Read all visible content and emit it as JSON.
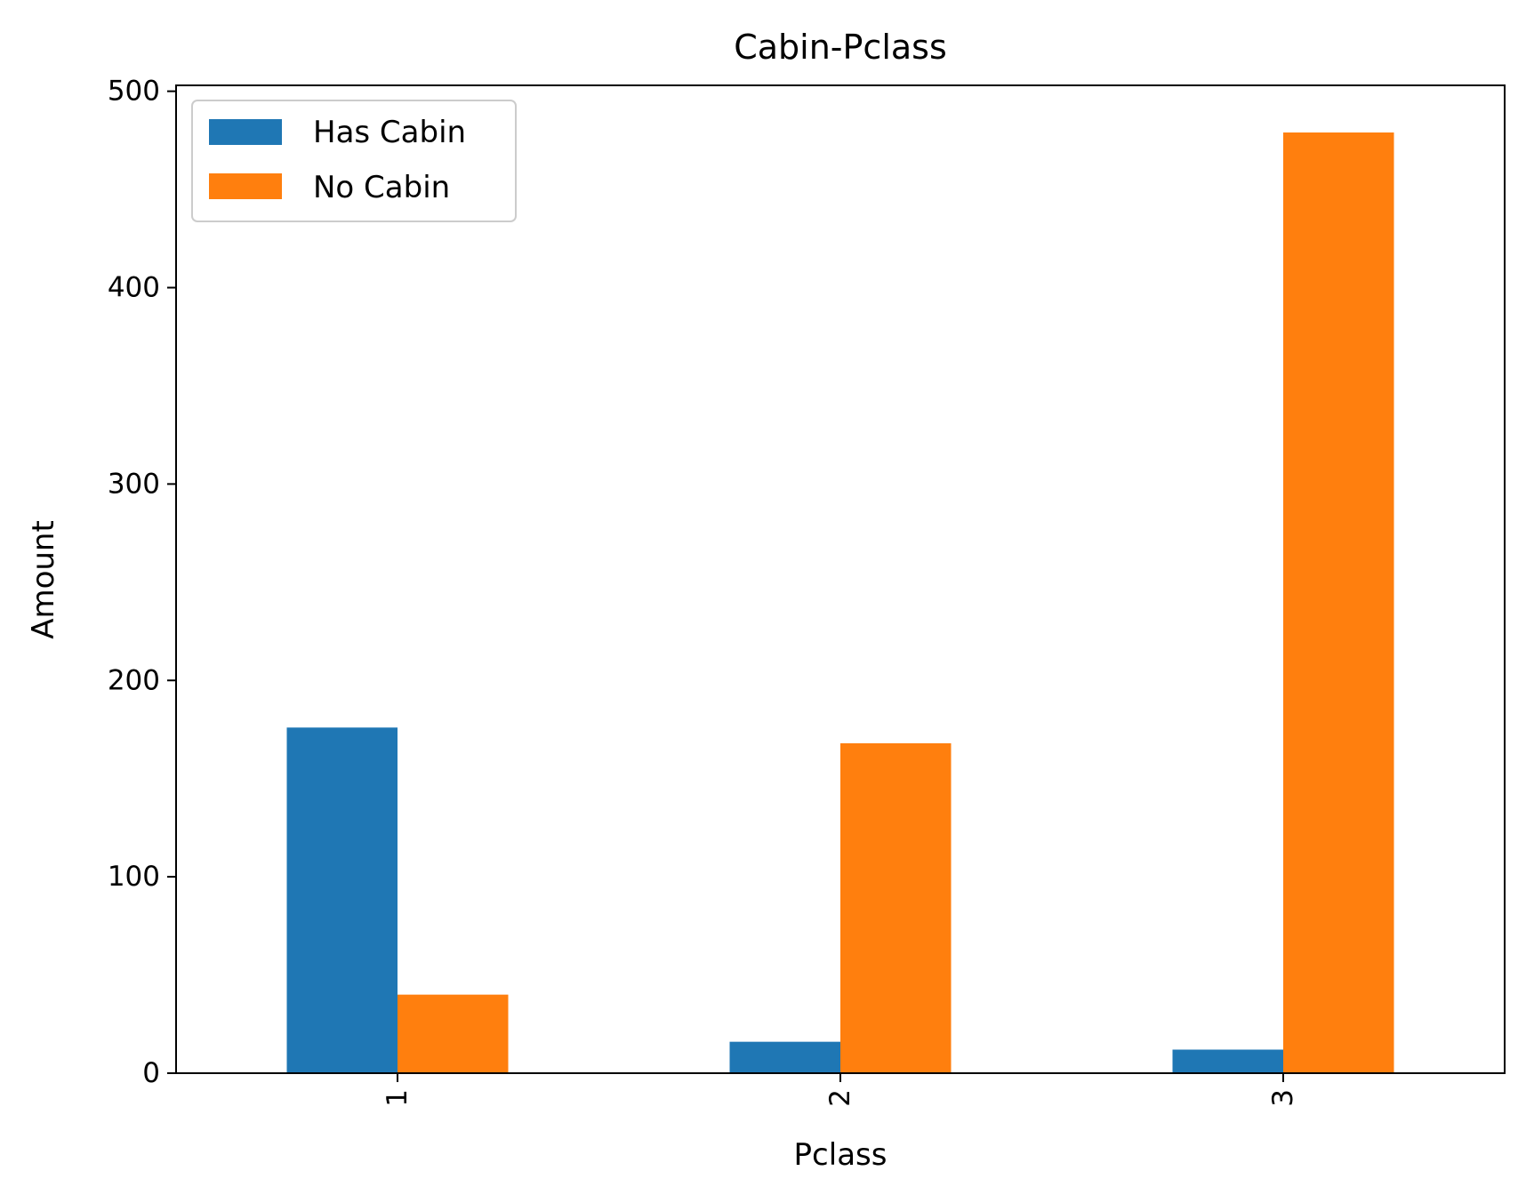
{
  "chart_data": {
    "type": "bar",
    "title": "Cabin-Pclass",
    "xlabel": "Pclass",
    "ylabel": "Amount",
    "categories": [
      "1",
      "2",
      "3"
    ],
    "series": [
      {
        "name": "Has Cabin",
        "values": [
          176,
          16,
          12
        ],
        "color": "#1f77b4"
      },
      {
        "name": "No Cabin",
        "values": [
          40,
          168,
          479
        ],
        "color": "#ff7f0e"
      }
    ],
    "ylim": [
      0,
      503
    ],
    "yticks": [
      0,
      100,
      200,
      300,
      400,
      500
    ],
    "grid": false,
    "legend_position": "top-left",
    "x_tick_rotation": "vertical"
  }
}
